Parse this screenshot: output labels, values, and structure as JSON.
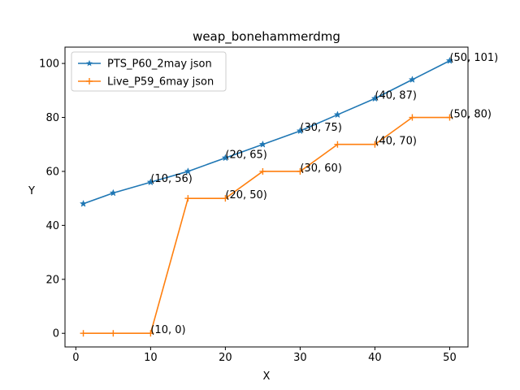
{
  "chart_data": {
    "type": "line",
    "title": "weap_bonehammerdmg",
    "xlabel": "X",
    "ylabel": "Y",
    "xlim": [
      -1.45,
      52.45
    ],
    "ylim": [
      -5.05,
      106.05
    ],
    "xticks": [
      0,
      10,
      20,
      30,
      40,
      50
    ],
    "yticks": [
      0,
      20,
      40,
      60,
      80,
      100
    ],
    "legend_position": "upper-left",
    "grid": false,
    "series": [
      {
        "name": "PTS_P60_2may json",
        "color": "#1f77b4",
        "marker": "star",
        "x": [
          1,
          5,
          10,
          15,
          20,
          25,
          30,
          35,
          40,
          45,
          50
        ],
        "y": [
          48,
          52,
          56,
          60,
          65,
          70,
          75,
          81,
          87,
          94,
          101
        ]
      },
      {
        "name": "Live_P59_6may json",
        "color": "#ff7f0e",
        "marker": "plus",
        "x": [
          1,
          5,
          10,
          15,
          20,
          25,
          30,
          35,
          40,
          45,
          50
        ],
        "y": [
          0,
          0,
          0,
          50,
          50,
          60,
          60,
          70,
          70,
          80,
          80
        ]
      }
    ],
    "annotations": [
      {
        "text": "(10, 56)",
        "x": 10,
        "y": 56
      },
      {
        "text": "(20, 65)",
        "x": 20,
        "y": 65
      },
      {
        "text": "(30, 75)",
        "x": 30,
        "y": 75
      },
      {
        "text": "(40, 87)",
        "x": 40,
        "y": 87
      },
      {
        "text": "(50, 101)",
        "x": 50,
        "y": 101
      },
      {
        "text": "(10, 0)",
        "x": 10,
        "y": 0
      },
      {
        "text": "(20, 50)",
        "x": 20,
        "y": 50
      },
      {
        "text": "(30, 60)",
        "x": 30,
        "y": 60
      },
      {
        "text": "(40, 70)",
        "x": 40,
        "y": 70
      },
      {
        "text": "(50, 80)",
        "x": 50,
        "y": 80
      }
    ]
  }
}
